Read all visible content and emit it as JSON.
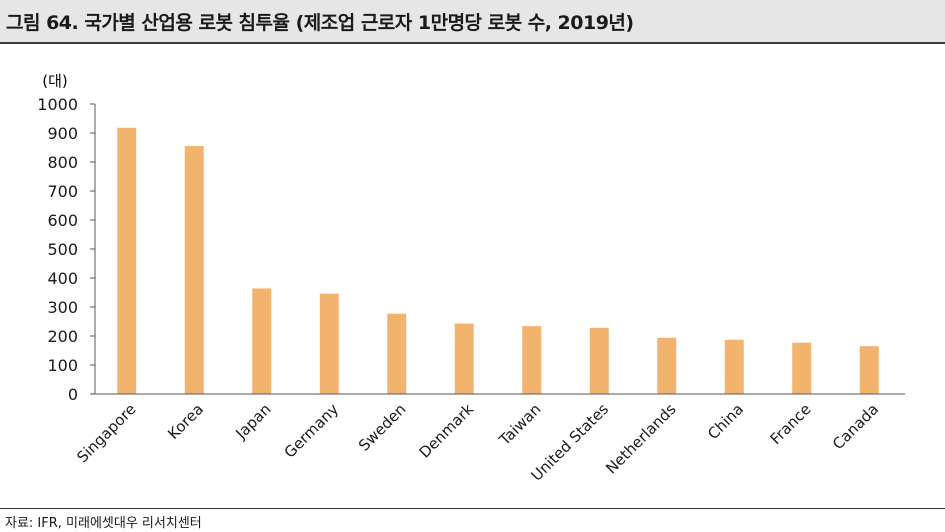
{
  "header": {
    "title": "그림 64. 국가별 산업용 로봇 침투율 (제조업 근로자 1만명당 로봇 수, 2019년)"
  },
  "footer": {
    "source": "자료: IFR, 미래에셋대우 리서치센터"
  },
  "chart_data": {
    "type": "bar",
    "title": "그림 64. 국가별 산업용 로봇 침투율 (제조업 근로자 1만명당 로봇 수, 2019년)",
    "xlabel": "",
    "ylabel": "(대)",
    "categories": [
      "Singapore",
      "Korea",
      "Japan",
      "Germany",
      "Sweden",
      "Denmark",
      "Taiwan",
      "United States",
      "Netherlands",
      "China",
      "France",
      "Canada"
    ],
    "values": [
      918,
      855,
      364,
      346,
      277,
      243,
      234,
      228,
      194,
      187,
      177,
      165
    ],
    "ylim": [
      0,
      1000
    ],
    "yticks": [
      0,
      100,
      200,
      300,
      400,
      500,
      600,
      700,
      800,
      900,
      1000
    ],
    "bar_color": "#F2B36E",
    "grid": false,
    "legend": "none"
  }
}
